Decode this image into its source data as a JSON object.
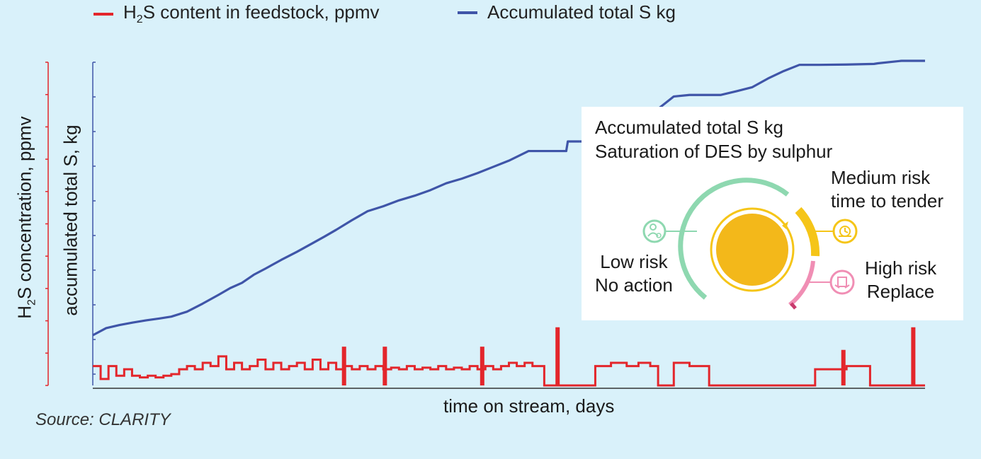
{
  "legend": {
    "h2s_label_pre": "H",
    "h2s_label_sub": "2",
    "h2s_label_post": "S content in feedstock, ppmv",
    "s_label": "Accumulated total S kg"
  },
  "axes": {
    "left_ylabel_pre": "H",
    "left_ylabel_sub": "2",
    "left_ylabel_post": "S concentration, ppmv",
    "right_ylabel": "accumulated total S, kg",
    "xlabel": "time on stream, days"
  },
  "source": "Source: CLARITY",
  "inset": {
    "title_line1": "Accumulated total S kg",
    "title_line2": "Saturation of DES by sulphur",
    "medium_line1": "Medium risk",
    "medium_line2": "time to tender",
    "low_line1": "Low risk",
    "low_line2": "No action",
    "high_line1": "High risk",
    "high_line2": "Replace",
    "colors": {
      "low": "#8ed8b0",
      "medium": "#f5c518",
      "high": "#f08eb4",
      "core": "#f3b81a"
    },
    "icons": {
      "low": "person-check-icon",
      "medium": "clock-icon",
      "high": "replace-icon"
    }
  },
  "colors": {
    "h2s": "#e3262b",
    "s": "#3f55a8",
    "background": "#d9f1fa",
    "left_axis": "#e3262b",
    "right_axis": "#3f55a8"
  },
  "chart_data": {
    "type": "line",
    "x_units": "time on stream (relative, 0-1)",
    "x_ticks_shown": false,
    "y_ticks_shown": false,
    "grid": false,
    "legend_position": "top",
    "series": [
      {
        "name": "Accumulated total S kg",
        "axis": "right",
        "unit": "relative (0-1)",
        "points": [
          [
            0.0,
            0.0
          ],
          [
            0.017,
            0.023
          ],
          [
            0.034,
            0.033
          ],
          [
            0.051,
            0.041
          ],
          [
            0.068,
            0.048
          ],
          [
            0.085,
            0.054
          ],
          [
            0.1,
            0.06
          ],
          [
            0.12,
            0.076
          ],
          [
            0.14,
            0.102
          ],
          [
            0.16,
            0.13
          ],
          [
            0.175,
            0.152
          ],
          [
            0.19,
            0.169
          ],
          [
            0.205,
            0.195
          ],
          [
            0.22,
            0.215
          ],
          [
            0.24,
            0.243
          ],
          [
            0.26,
            0.269
          ],
          [
            0.28,
            0.297
          ],
          [
            0.295,
            0.318
          ],
          [
            0.31,
            0.34
          ],
          [
            0.33,
            0.371
          ],
          [
            0.35,
            0.4
          ],
          [
            0.37,
            0.416
          ],
          [
            0.39,
            0.435
          ],
          [
            0.41,
            0.45
          ],
          [
            0.43,
            0.468
          ],
          [
            0.45,
            0.49
          ],
          [
            0.47,
            0.505
          ],
          [
            0.49,
            0.523
          ],
          [
            0.51,
            0.543
          ],
          [
            0.53,
            0.563
          ],
          [
            0.555,
            0.594
          ],
          [
            0.58,
            0.594
          ],
          [
            0.603,
            0.594
          ],
          [
            0.605,
            0.625
          ],
          [
            0.625,
            0.625
          ],
          [
            0.65,
            0.662
          ],
          [
            0.68,
            0.71
          ],
          [
            0.71,
            0.71
          ],
          [
            0.74,
            0.77
          ],
          [
            0.76,
            0.775
          ],
          [
            0.8,
            0.775
          ],
          [
            0.82,
            0.787
          ],
          [
            0.84,
            0.8
          ],
          [
            0.86,
            0.828
          ],
          [
            0.88,
            0.852
          ],
          [
            0.9,
            0.872
          ],
          [
            0.925,
            0.872
          ],
          [
            0.96,
            0.873
          ],
          [
            0.995,
            0.875
          ],
          [
            1.0,
            0.877
          ],
          [
            1.03,
            0.885
          ],
          [
            1.06,
            0.885
          ]
        ]
      },
      {
        "name": "H2S content in feedstock, ppmv",
        "axis": "left",
        "unit": "relative (0-1)",
        "step": true,
        "points": [
          [
            0.0,
            0.06
          ],
          [
            0.01,
            0.02
          ],
          [
            0.02,
            0.06
          ],
          [
            0.03,
            0.03
          ],
          [
            0.04,
            0.05
          ],
          [
            0.05,
            0.03
          ],
          [
            0.06,
            0.025
          ],
          [
            0.07,
            0.03
          ],
          [
            0.08,
            0.025
          ],
          [
            0.09,
            0.03
          ],
          [
            0.1,
            0.035
          ],
          [
            0.11,
            0.05
          ],
          [
            0.12,
            0.06
          ],
          [
            0.13,
            0.05
          ],
          [
            0.14,
            0.07
          ],
          [
            0.15,
            0.06
          ],
          [
            0.16,
            0.09
          ],
          [
            0.17,
            0.05
          ],
          [
            0.18,
            0.07
          ],
          [
            0.19,
            0.05
          ],
          [
            0.2,
            0.06
          ],
          [
            0.21,
            0.08
          ],
          [
            0.22,
            0.05
          ],
          [
            0.23,
            0.07
          ],
          [
            0.24,
            0.05
          ],
          [
            0.25,
            0.06
          ],
          [
            0.26,
            0.07
          ],
          [
            0.27,
            0.05
          ],
          [
            0.28,
            0.08
          ],
          [
            0.29,
            0.05
          ],
          [
            0.3,
            0.07
          ],
          [
            0.31,
            0.05
          ],
          [
            0.32,
            0.06
          ],
          [
            0.33,
            0.05
          ],
          [
            0.34,
            0.06
          ],
          [
            0.35,
            0.05
          ],
          [
            0.36,
            0.06
          ],
          [
            0.37,
            0.05
          ],
          [
            0.38,
            0.055
          ],
          [
            0.39,
            0.05
          ],
          [
            0.4,
            0.06
          ],
          [
            0.41,
            0.05
          ],
          [
            0.42,
            0.055
          ],
          [
            0.43,
            0.05
          ],
          [
            0.44,
            0.06
          ],
          [
            0.45,
            0.05
          ],
          [
            0.46,
            0.055
          ],
          [
            0.47,
            0.05
          ],
          [
            0.48,
            0.06
          ],
          [
            0.49,
            0.05
          ],
          [
            0.5,
            0.06
          ],
          [
            0.51,
            0.05
          ],
          [
            0.52,
            0.06
          ],
          [
            0.53,
            0.07
          ],
          [
            0.54,
            0.06
          ],
          [
            0.55,
            0.07
          ],
          [
            0.56,
            0.06
          ],
          [
            0.575,
            0.0
          ],
          [
            0.63,
            0.0
          ],
          [
            0.64,
            0.06
          ],
          [
            0.66,
            0.07
          ],
          [
            0.68,
            0.06
          ],
          [
            0.695,
            0.07
          ],
          [
            0.71,
            0.06
          ],
          [
            0.72,
            0.0
          ],
          [
            0.73,
            0.0
          ],
          [
            0.74,
            0.07
          ],
          [
            0.76,
            0.06
          ],
          [
            0.77,
            0.06
          ],
          [
            0.785,
            0.0
          ],
          [
            0.84,
            0.0
          ],
          [
            0.9,
            0.0
          ],
          [
            0.92,
            0.05
          ],
          [
            0.94,
            0.05
          ],
          [
            0.96,
            0.06
          ],
          [
            0.975,
            0.06
          ],
          [
            0.99,
            0.0
          ],
          [
            1.06,
            0.0
          ]
        ],
        "spikes": [
          [
            0.32,
            0.12
          ],
          [
            0.372,
            0.12
          ],
          [
            0.496,
            0.12
          ],
          [
            0.592,
            0.18
          ],
          [
            0.956,
            0.11
          ],
          [
            1.045,
            0.18
          ]
        ]
      }
    ]
  }
}
